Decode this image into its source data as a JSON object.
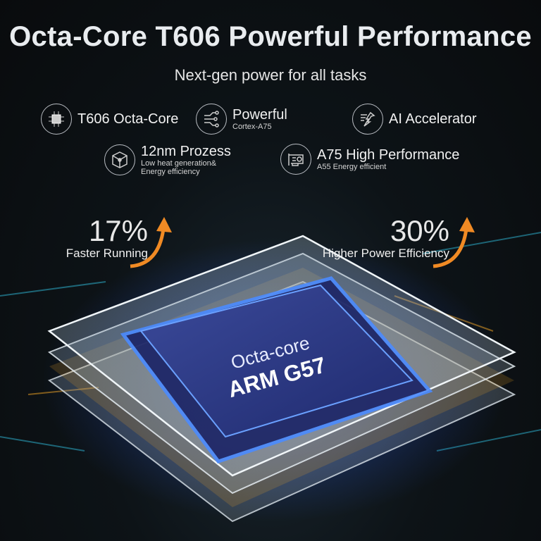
{
  "header": {
    "title": "Octa-Core T606 Powerful Performance",
    "subtitle": "Next-gen power for all tasks"
  },
  "features": [
    {
      "icon": "cpu-chip-icon",
      "title": "T606 Octa-Core"
    },
    {
      "icon": "circuit-icon",
      "title": "Powerful",
      "subtitle": "Cortex-A75"
    },
    {
      "icon": "ai-accelerator-arrow-icon",
      "title": "AI Accelerator"
    },
    {
      "icon": "cube-network-icon",
      "title": "12nm Prozess",
      "subtitle": "Low heat generation&",
      "subtitle2": "Energy efficiency"
    },
    {
      "icon": "graphics-card-icon",
      "title": "A75 High Performance",
      "subtitle": "A55 Energy efficient"
    }
  ],
  "stats": [
    {
      "value": "17%",
      "label": "Faster Running"
    },
    {
      "value": "30%",
      "label": "Higher Power Efficiency"
    }
  ],
  "chip": {
    "line1": "Octa-core",
    "line2": "ARM G57"
  },
  "colors": {
    "accent_orange": "#f08a24",
    "glow_blue": "#3a6dff",
    "glow_cyan": "#3fd0ff",
    "amber_light": "#ffb020"
  }
}
